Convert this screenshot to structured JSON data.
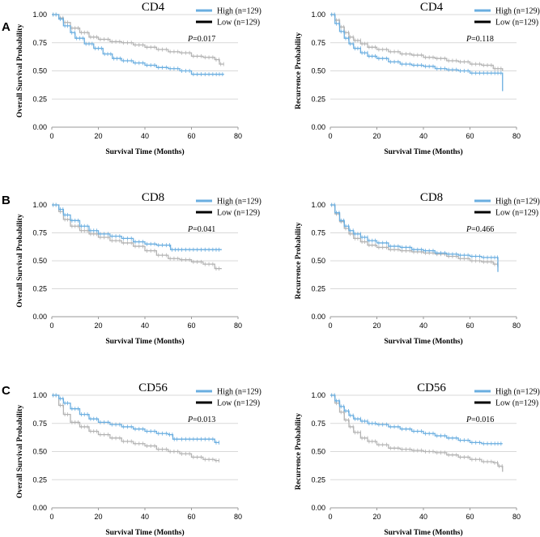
{
  "panel_letters": [
    "A",
    "B",
    "C"
  ],
  "colors": {
    "high": "#6aaee0",
    "low_curve": "#b3b3b3",
    "low_legend": "#000000",
    "grid": "#d9d9d9",
    "axis": "#9a9a9a"
  },
  "legend": {
    "high": "High (n=129)",
    "low": "Low (n=129)"
  },
  "chart_data": [
    {
      "type": "line",
      "panel": "A",
      "title": "CD4",
      "xlabel": "Survival Time (Months)",
      "ylabel": "Overall Survival Probability",
      "xlim": [
        0,
        80
      ],
      "ylim": [
        0,
        1
      ],
      "xticks": [
        "0",
        "20",
        "40",
        "60",
        "80"
      ],
      "yticks": [
        "0.00",
        "0.25",
        "0.50",
        "0.75",
        "1.00"
      ],
      "p_prefix": "P",
      "p_value": "=0.017",
      "series": [
        {
          "name": "High (n=129)",
          "x": [
            0,
            3,
            5,
            8,
            10,
            14,
            18,
            22,
            26,
            30,
            35,
            40,
            45,
            50,
            55,
            60,
            65,
            70,
            74
          ],
          "y": [
            1.0,
            0.96,
            0.9,
            0.84,
            0.79,
            0.74,
            0.7,
            0.65,
            0.61,
            0.59,
            0.57,
            0.55,
            0.53,
            0.52,
            0.5,
            0.47,
            0.47,
            0.47,
            0.47
          ]
        },
        {
          "name": "Low (n=129)",
          "x": [
            0,
            3,
            5,
            8,
            12,
            16,
            20,
            25,
            30,
            35,
            40,
            45,
            50,
            55,
            60,
            65,
            70,
            72,
            74
          ],
          "y": [
            1.0,
            0.97,
            0.93,
            0.88,
            0.84,
            0.8,
            0.78,
            0.76,
            0.75,
            0.73,
            0.71,
            0.69,
            0.67,
            0.66,
            0.63,
            0.62,
            0.6,
            0.56,
            0.56
          ]
        }
      ]
    },
    {
      "type": "line",
      "panel": "A",
      "title": "CD4",
      "xlabel": "Survival Time (Months)",
      "ylabel": "Recurrence Probability",
      "xlim": [
        0,
        80
      ],
      "ylim": [
        0,
        1
      ],
      "xticks": [
        "0",
        "20",
        "40",
        "60",
        "80"
      ],
      "yticks": [
        "0.00",
        "0.25",
        "0.50",
        "0.75",
        "1.00"
      ],
      "p_prefix": "P",
      "p_value": "=0.118",
      "series": [
        {
          "name": "High (n=129)",
          "x": [
            0,
            2,
            4,
            6,
            8,
            10,
            13,
            16,
            20,
            25,
            30,
            35,
            40,
            45,
            50,
            55,
            60,
            65,
            70,
            74,
            74
          ],
          "y": [
            1.0,
            0.92,
            0.85,
            0.79,
            0.74,
            0.7,
            0.66,
            0.63,
            0.61,
            0.58,
            0.56,
            0.55,
            0.54,
            0.52,
            0.51,
            0.5,
            0.48,
            0.48,
            0.48,
            0.48,
            0.32
          ]
        },
        {
          "name": "Low (n=129)",
          "x": [
            0,
            2,
            4,
            6,
            8,
            10,
            13,
            16,
            20,
            25,
            30,
            35,
            40,
            45,
            50,
            55,
            60,
            65,
            70,
            74
          ],
          "y": [
            1.0,
            0.95,
            0.89,
            0.84,
            0.8,
            0.77,
            0.74,
            0.71,
            0.69,
            0.67,
            0.65,
            0.64,
            0.62,
            0.61,
            0.59,
            0.58,
            0.56,
            0.55,
            0.52,
            0.5
          ]
        }
      ]
    },
    {
      "type": "line",
      "panel": "B",
      "title": "CD8",
      "xlabel": "Survival Time (Months)",
      "ylabel": "Overall Survival Probability",
      "xlim": [
        0,
        80
      ],
      "ylim": [
        0,
        1
      ],
      "xticks": [
        "0",
        "20",
        "40",
        "60",
        "80"
      ],
      "yticks": [
        "0.00",
        "0.25",
        "0.50",
        "0.75",
        "1.00"
      ],
      "p_prefix": "P",
      "p_value": "=0.041",
      "series": [
        {
          "name": "High (n=129)",
          "x": [
            0,
            3,
            5,
            8,
            12,
            16,
            20,
            25,
            30,
            35,
            40,
            45,
            50,
            51,
            55,
            60,
            65,
            70,
            73
          ],
          "y": [
            1.0,
            0.96,
            0.91,
            0.86,
            0.81,
            0.77,
            0.74,
            0.72,
            0.7,
            0.67,
            0.65,
            0.64,
            0.64,
            0.6,
            0.6,
            0.6,
            0.6,
            0.6,
            0.6
          ]
        },
        {
          "name": "Low (n=129)",
          "x": [
            0,
            3,
            5,
            8,
            12,
            16,
            20,
            25,
            30,
            35,
            40,
            45,
            50,
            55,
            60,
            65,
            70,
            73
          ],
          "y": [
            1.0,
            0.94,
            0.87,
            0.81,
            0.77,
            0.74,
            0.71,
            0.68,
            0.66,
            0.63,
            0.59,
            0.55,
            0.52,
            0.51,
            0.49,
            0.47,
            0.43,
            0.43
          ]
        }
      ]
    },
    {
      "type": "line",
      "panel": "B",
      "title": "CD8",
      "xlabel": "Survival Time (Months)",
      "ylabel": "Recurrence Probability",
      "xlim": [
        0,
        80
      ],
      "ylim": [
        0,
        1
      ],
      "xticks": [
        "0",
        "20",
        "40",
        "60",
        "80"
      ],
      "yticks": [
        "0.00",
        "0.25",
        "0.50",
        "0.75",
        "1.00"
      ],
      "p_prefix": "P",
      "p_value": "=0.466",
      "series": [
        {
          "name": "High (n=129)",
          "x": [
            0,
            2,
            4,
            6,
            8,
            10,
            13,
            16,
            20,
            25,
            30,
            35,
            40,
            45,
            50,
            55,
            60,
            65,
            70,
            72,
            72
          ],
          "y": [
            1.0,
            0.93,
            0.86,
            0.81,
            0.77,
            0.74,
            0.71,
            0.68,
            0.66,
            0.63,
            0.62,
            0.6,
            0.59,
            0.57,
            0.56,
            0.55,
            0.54,
            0.53,
            0.53,
            0.53,
            0.4
          ]
        },
        {
          "name": "Low (n=129)",
          "x": [
            0,
            2,
            4,
            6,
            8,
            10,
            13,
            16,
            20,
            25,
            30,
            35,
            40,
            45,
            50,
            55,
            60,
            65,
            70,
            72
          ],
          "y": [
            1.0,
            0.92,
            0.85,
            0.79,
            0.74,
            0.7,
            0.67,
            0.64,
            0.62,
            0.6,
            0.59,
            0.58,
            0.57,
            0.56,
            0.54,
            0.52,
            0.5,
            0.49,
            0.47,
            0.44
          ]
        }
      ]
    },
    {
      "type": "line",
      "panel": "C",
      "title": "CD56",
      "xlabel": "Survival Time (Months)",
      "ylabel": "Overall Survival Probability",
      "xlim": [
        0,
        80
      ],
      "ylim": [
        0,
        1
      ],
      "xticks": [
        "0",
        "20",
        "40",
        "60",
        "80"
      ],
      "yticks": [
        "0.00",
        "0.25",
        "0.50",
        "0.75",
        "1.00"
      ],
      "p_prefix": "P",
      "p_value": "=0.013",
      "series": [
        {
          "name": "High (n=129)",
          "x": [
            0,
            3,
            5,
            8,
            12,
            16,
            20,
            25,
            30,
            35,
            40,
            45,
            50,
            52,
            55,
            60,
            65,
            70,
            72
          ],
          "y": [
            1.0,
            0.97,
            0.93,
            0.88,
            0.83,
            0.79,
            0.76,
            0.74,
            0.72,
            0.7,
            0.68,
            0.66,
            0.65,
            0.61,
            0.61,
            0.61,
            0.61,
            0.58,
            0.58
          ]
        },
        {
          "name": "Low (n=129)",
          "x": [
            0,
            3,
            5,
            8,
            12,
            16,
            20,
            25,
            30,
            35,
            40,
            45,
            50,
            55,
            60,
            65,
            70,
            72
          ],
          "y": [
            1.0,
            0.91,
            0.83,
            0.76,
            0.72,
            0.68,
            0.65,
            0.62,
            0.59,
            0.57,
            0.55,
            0.52,
            0.5,
            0.48,
            0.45,
            0.43,
            0.42,
            0.42
          ]
        }
      ]
    },
    {
      "type": "line",
      "panel": "C",
      "title": "CD56",
      "xlabel": "Survival Time (Months)",
      "ylabel": "Recurrence Probability",
      "xlim": [
        0,
        80
      ],
      "ylim": [
        0,
        1
      ],
      "xticks": [
        "0",
        "20",
        "40",
        "60",
        "80"
      ],
      "yticks": [
        "0.00",
        "0.25",
        "0.50",
        "0.75",
        "1.00"
      ],
      "p_prefix": "P",
      "p_value": "=0.016",
      "series": [
        {
          "name": "High (n=129)",
          "x": [
            0,
            2,
            4,
            6,
            8,
            10,
            13,
            16,
            20,
            25,
            30,
            35,
            40,
            45,
            50,
            55,
            60,
            65,
            70,
            74
          ],
          "y": [
            1.0,
            0.95,
            0.9,
            0.86,
            0.82,
            0.79,
            0.77,
            0.75,
            0.74,
            0.72,
            0.7,
            0.68,
            0.66,
            0.64,
            0.62,
            0.6,
            0.58,
            0.57,
            0.57,
            0.57
          ]
        },
        {
          "name": "Low (n=129)",
          "x": [
            0,
            2,
            4,
            6,
            8,
            10,
            13,
            16,
            20,
            25,
            30,
            35,
            40,
            45,
            50,
            55,
            60,
            65,
            70,
            72,
            74,
            74
          ],
          "y": [
            1.0,
            0.93,
            0.85,
            0.78,
            0.72,
            0.67,
            0.62,
            0.59,
            0.56,
            0.53,
            0.52,
            0.51,
            0.5,
            0.49,
            0.47,
            0.45,
            0.43,
            0.41,
            0.4,
            0.37,
            0.37,
            0.32
          ]
        }
      ]
    }
  ]
}
